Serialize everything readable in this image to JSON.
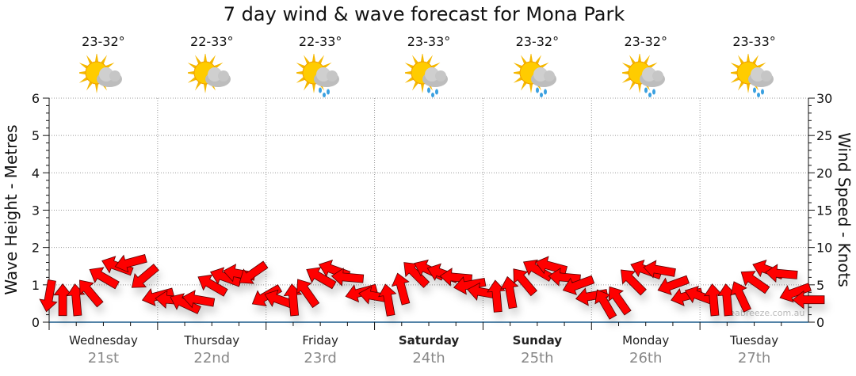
{
  "chart_data": {
    "type": "wind-arrows",
    "title": "7 day wind & wave forecast for Mona Park",
    "ylabel_left": "Wave Height - Metres",
    "ylabel_right": "Wind Speed - Knots",
    "ylim_left": [
      0,
      6
    ],
    "ylim_right": [
      0,
      30
    ],
    "yticks_left": [
      "0",
      "1",
      "2",
      "3",
      "4",
      "5",
      "6"
    ],
    "yticks_right": [
      "0",
      "5",
      "10",
      "15",
      "20",
      "25",
      "30"
    ],
    "grid": true,
    "watermark": "seabreeze.com.au",
    "days": [
      {
        "name": "Wednesday",
        "date": "21st",
        "temp": "23-32°",
        "icon": "sun-cloud",
        "bold": false
      },
      {
        "name": "Thursday",
        "date": "22nd",
        "temp": "22-33°",
        "icon": "sun-cloud",
        "bold": false
      },
      {
        "name": "Friday",
        "date": "23rd",
        "temp": "22-33°",
        "icon": "sun-cloud-rain",
        "bold": false
      },
      {
        "name": "Saturday",
        "date": "24th",
        "temp": "23-33°",
        "icon": "sun-cloud-rain",
        "bold": true
      },
      {
        "name": "Sunday",
        "date": "25th",
        "temp": "23-32°",
        "icon": "sun-cloud-rain",
        "bold": true
      },
      {
        "name": "Monday",
        "date": "26th",
        "temp": "23-32°",
        "icon": "sun-cloud-rain",
        "bold": false
      },
      {
        "name": "Tuesday",
        "date": "27th",
        "temp": "23-33°",
        "icon": "sun-cloud-rain",
        "bold": false
      }
    ],
    "wind_hours_step": 3,
    "wind_speed_knots": [
      3.5,
      3,
      3,
      4,
      6,
      7.5,
      8,
      6,
      3.5,
      3,
      2.5,
      3,
      5,
      6,
      6.5,
      6.5,
      3.5,
      3,
      3,
      4,
      6,
      7,
      6,
      4,
      3.5,
      3,
      4.5,
      6.5,
      7,
      6.5,
      6,
      5,
      4,
      3.5,
      4,
      5.5,
      7,
      7.5,
      6,
      5,
      3.5,
      2.5,
      3,
      5.5,
      7,
      7,
      5,
      3.5,
      3.5,
      3,
      3,
      3.5,
      5.5,
      7,
      6.5,
      4,
      3
    ],
    "wind_from_deg": [
      10,
      180,
      175,
      140,
      120,
      110,
      75,
      50,
      75,
      95,
      115,
      100,
      120,
      110,
      100,
      55,
      60,
      110,
      175,
      145,
      120,
      110,
      95,
      75,
      100,
      170,
      165,
      135,
      115,
      110,
      95,
      80,
      100,
      175,
      170,
      140,
      120,
      105,
      95,
      70,
      80,
      150,
      145,
      135,
      110,
      100,
      70,
      75,
      110,
      175,
      175,
      155,
      125,
      110,
      95,
      70,
      90
    ],
    "colors": {
      "arrow": "#ff0000",
      "arrow_stroke": "#5a0000",
      "axis": "#1a5a8a",
      "grid": "#999999"
    }
  }
}
